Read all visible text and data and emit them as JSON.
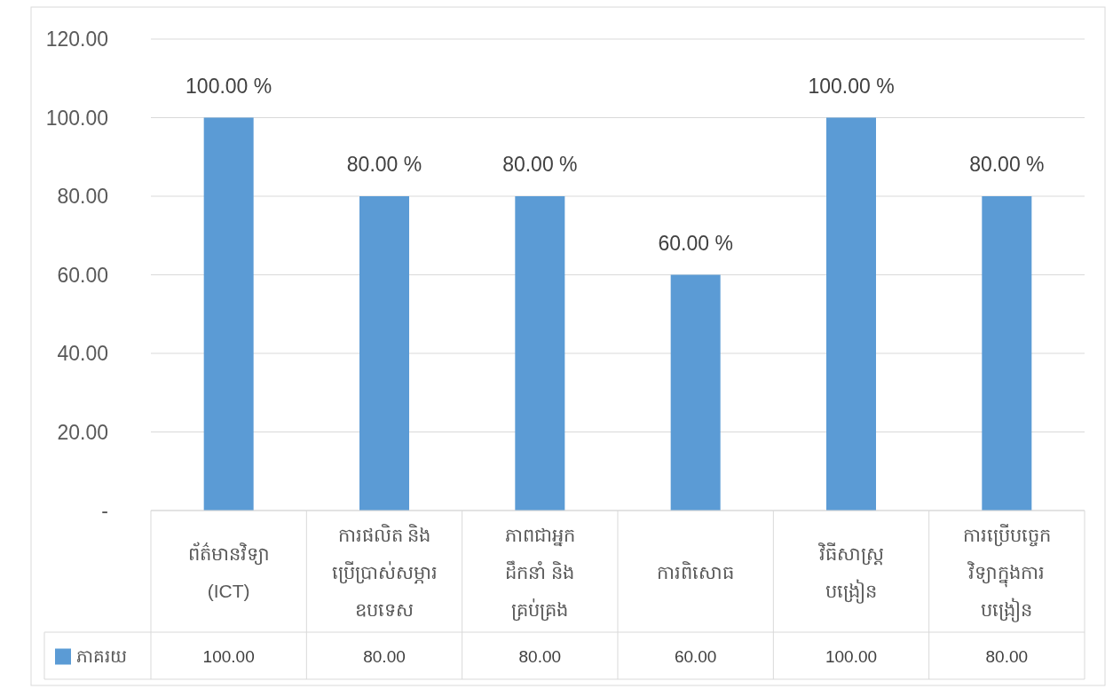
{
  "chart_data": {
    "type": "bar",
    "categories": [
      "ព័ត៌មានវិទ្យា\n(ICT)",
      "ការផលិត និង\nប្រើប្រាស់សម្ភារ\nឧបទេស",
      "ភាពជាអ្នក\nដឹកនាំ និង\nគ្រប់គ្រង",
      "ការពិសោធ",
      "វិធីសាស្ត្រ\nបង្រៀន",
      "ការប្រើបច្ចេក\nវិទ្យាក្នុងការ\nបង្រៀន"
    ],
    "series": [
      {
        "name": "ភាគរយ",
        "color": "#5b9bd5",
        "values": [
          100,
          80,
          80,
          60,
          100,
          80
        ],
        "value_labels": [
          "100.00",
          "80.00",
          "80.00",
          "60.00",
          "100.00",
          "80.00"
        ]
      }
    ],
    "annotations": [
      {
        "text": "100.00 %",
        "x": "ព័ត៌មានវិទ្យា\n(ICT)",
        "y": 100
      },
      {
        "text": "80.00 %",
        "x": "ការផលិត និង\nប្រើប្រាស់សម្ភារ\nឧបទេស",
        "y": 80
      },
      {
        "text": "80.00 %",
        "x": "ភាពជាអ្នក\nដឹកនាំ និង\nគ្រប់គ្រង",
        "y": 80
      },
      {
        "text": "60.00 %",
        "x": "ការពិសោធ",
        "y": 60
      },
      {
        "text": "100.00 %",
        "x": "វិធីសាស្ត្រ\nបង្រៀន",
        "y": 100
      },
      {
        "text": "80.00 %",
        "x": "ការប្រើបច្ចេក\nវិទ្យាក្នុងការ\nបង្រៀន",
        "y": 80
      }
    ],
    "ylim": [
      0,
      120
    ],
    "yticks": [
      {
        "value": 0,
        "label": "-"
      },
      {
        "value": 20,
        "label": "20.00"
      },
      {
        "value": 40,
        "label": "40.00"
      },
      {
        "value": 60,
        "label": "60.00"
      },
      {
        "value": 80,
        "label": "80.00"
      },
      {
        "value": 100,
        "label": "100.00"
      },
      {
        "value": 120,
        "label": "120.00"
      }
    ],
    "grid": "y",
    "legend": "bottom"
  }
}
